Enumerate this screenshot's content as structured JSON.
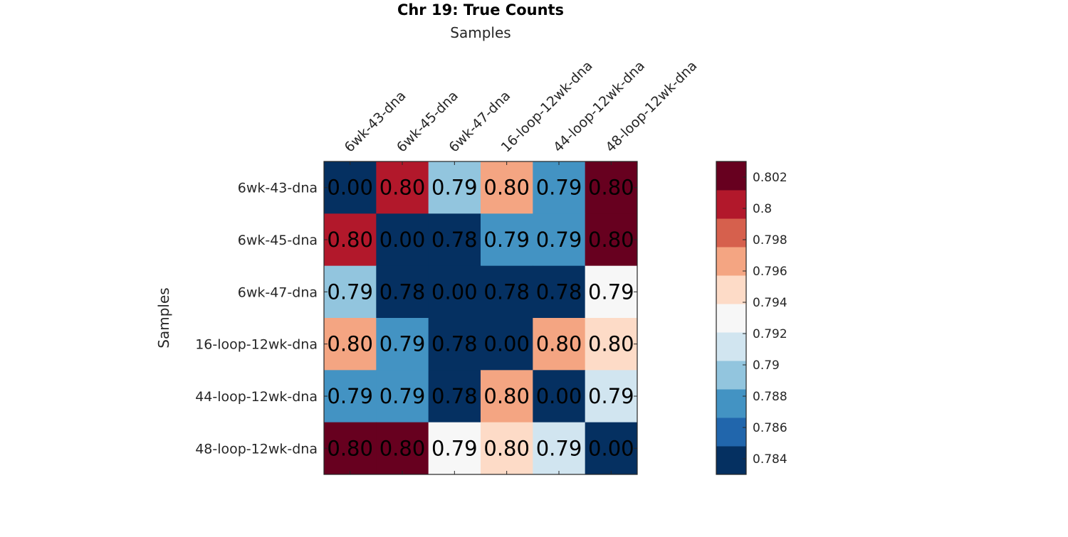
{
  "chart_data": {
    "type": "heatmap",
    "title": "Chr 19: True Counts",
    "xlabel": "Samples",
    "ylabel": "Samples",
    "x_categories": [
      "6wk-43-dna",
      "6wk-45-dna",
      "6wk-47-dna",
      "16-loop-12wk-dna",
      "44-loop-12wk-dna",
      "48-loop-12wk-dna"
    ],
    "y_categories": [
      "6wk-43-dna",
      "6wk-45-dna",
      "6wk-47-dna",
      "16-loop-12wk-dna",
      "44-loop-12wk-dna",
      "48-loop-12wk-dna"
    ],
    "values": [
      [
        0.0,
        0.8,
        0.79,
        0.797,
        0.788,
        0.803
      ],
      [
        0.8,
        0.0,
        0.783,
        0.788,
        0.788,
        0.803
      ],
      [
        0.79,
        0.783,
        0.0,
        0.783,
        0.783,
        0.793
      ],
      [
        0.797,
        0.788,
        0.783,
        0.0,
        0.797,
        0.795
      ],
      [
        0.788,
        0.788,
        0.783,
        0.797,
        0.0,
        0.791
      ],
      [
        0.803,
        0.803,
        0.793,
        0.795,
        0.791,
        0.0
      ]
    ],
    "cell_labels": [
      [
        "0.00",
        "0.80",
        "0.79",
        "0.80",
        "0.79",
        "0.80"
      ],
      [
        "0.80",
        "0.00",
        "0.78",
        "0.79",
        "0.79",
        "0.80"
      ],
      [
        "0.79",
        "0.78",
        "0.00",
        "0.78",
        "0.78",
        "0.79"
      ],
      [
        "0.80",
        "0.79",
        "0.78",
        "0.00",
        "0.80",
        "0.80"
      ],
      [
        "0.79",
        "0.79",
        "0.78",
        "0.80",
        "0.00",
        "0.79"
      ],
      [
        "0.80",
        "0.80",
        "0.79",
        "0.80",
        "0.79",
        "0.00"
      ]
    ],
    "colorbar": {
      "range": [
        0.783,
        0.803
      ],
      "ticks": [
        0.784,
        0.786,
        0.788,
        0.79,
        0.792,
        0.794,
        0.796,
        0.798,
        0.8,
        0.802
      ],
      "tick_labels": [
        "0.784",
        "0.786",
        "0.788",
        "0.79",
        "0.792",
        "0.794",
        "0.796",
        "0.798",
        "0.8",
        "0.802"
      ],
      "colors": [
        "#053061",
        "#2166ac",
        "#4393c3",
        "#92c5de",
        "#d1e5f0",
        "#f7f7f7",
        "#fddbc7",
        "#f4a582",
        "#d6604d",
        "#b2182b",
        "#67001f"
      ]
    }
  }
}
